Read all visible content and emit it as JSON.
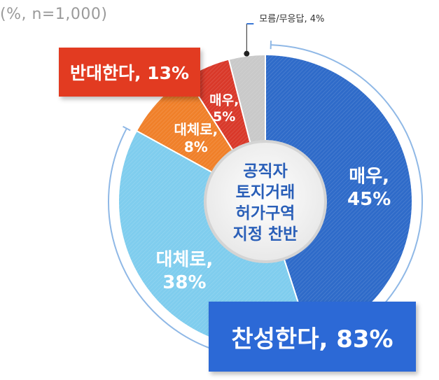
{
  "note": "(%, n=1,000)",
  "center_label": [
    "공직자",
    "토지거래",
    "허가구역",
    "지정 찬반"
  ],
  "groups": {
    "support": "찬성한다, 83%",
    "oppose": "반대한다, 13%",
    "unknown": "모름/무응답, 4%"
  },
  "chart_data": {
    "type": "pie",
    "title": "",
    "categories": [
      "매우,",
      "대체로,",
      "대체로,",
      "매우,",
      "모름/무응답"
    ],
    "values": [
      45,
      38,
      8,
      5,
      4
    ],
    "value_labels": [
      "45%",
      "38%",
      "8%",
      "5%",
      "4%"
    ],
    "groups": [
      {
        "label": "찬성한다",
        "value": 83,
        "members": [
          0,
          1
        ]
      },
      {
        "label": "반대한다",
        "value": 13,
        "members": [
          2,
          3
        ]
      },
      {
        "label": "모름/무응답",
        "value": 4,
        "members": [
          4
        ]
      }
    ],
    "colors": [
      "#2f6bc9",
      "#7fcdee",
      "#f0802a",
      "#d9392a",
      "#c9c9c9"
    ],
    "accent": {
      "support": "#2c69d6",
      "oppose": "#e23b21",
      "ring": "#8fb8e6"
    }
  }
}
